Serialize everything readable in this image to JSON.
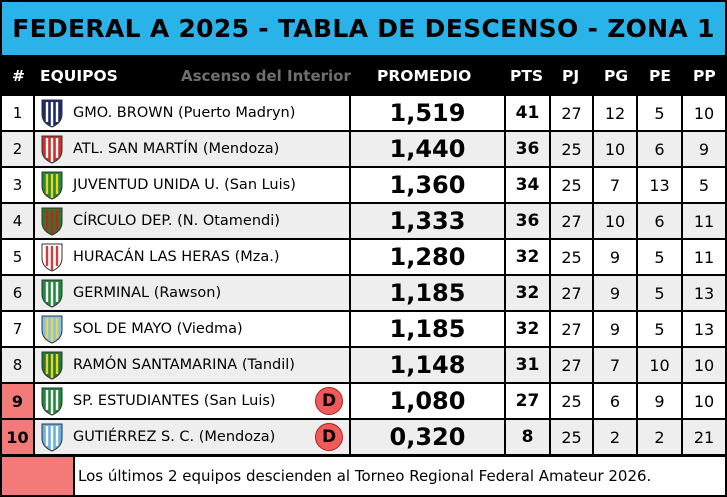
{
  "title": "FEDERAL A 2025 - TABLA DE DESCENSO - ZONA 1",
  "header": {
    "num": "#",
    "teams": "EQUIPOS",
    "subtitle": "Ascenso del Interior",
    "prom": "PROMEDIO",
    "pts": "PTS",
    "pj": "PJ",
    "pg": "PG",
    "pe": "PE",
    "pp": "PP"
  },
  "colors": {
    "title_bg": "#29b3e9",
    "relegation": "#f47a7a",
    "badge": "#f15a5a"
  },
  "rows": [
    {
      "pos": "1",
      "team": "GMO. BROWN (Puerto Madryn)",
      "prom": "1,519",
      "pts": "41",
      "pj": "27",
      "pg": "12",
      "pe": "5",
      "pp": "10",
      "badge": "",
      "shield": [
        "#1d2a6b",
        "#ffffff"
      ]
    },
    {
      "pos": "2",
      "team": "ATL. SAN MARTÍN (Mendoza)",
      "prom": "1,440",
      "pts": "36",
      "pj": "25",
      "pg": "10",
      "pe": "6",
      "pp": "9",
      "badge": "",
      "shield": [
        "#d42a2a",
        "#ffffff"
      ]
    },
    {
      "pos": "3",
      "team": "JUVENTUD UNIDA U. (San Luis)",
      "prom": "1,360",
      "pts": "34",
      "pj": "25",
      "pg": "7",
      "pe": "13",
      "pp": "5",
      "badge": "",
      "shield": [
        "#1e8a3a",
        "#f2d21b"
      ]
    },
    {
      "pos": "4",
      "team": "CÍRCULO DEP. (N. Otamendi)",
      "prom": "1,333",
      "pts": "36",
      "pj": "27",
      "pg": "10",
      "pe": "6",
      "pp": "11",
      "badge": "",
      "shield": [
        "#2a7a2a",
        "#c82020"
      ]
    },
    {
      "pos": "5",
      "team": "HURACÁN LAS HERAS (Mza.)",
      "prom": "1,280",
      "pts": "32",
      "pj": "25",
      "pg": "9",
      "pe": "5",
      "pp": "11",
      "badge": "",
      "shield": [
        "#ffffff",
        "#d63a3a"
      ]
    },
    {
      "pos": "6",
      "team": "GERMINAL (Rawson)",
      "prom": "1,185",
      "pts": "32",
      "pj": "27",
      "pg": "9",
      "pe": "5",
      "pp": "13",
      "badge": "",
      "shield": [
        "#1e8a3a",
        "#ffffff"
      ]
    },
    {
      "pos": "7",
      "team": "SOL DE MAYO (Viedma)",
      "prom": "1,185",
      "pts": "32",
      "pj": "27",
      "pg": "9",
      "pe": "5",
      "pp": "13",
      "badge": "",
      "shield": [
        "#7fc4ee",
        "#f5d33a"
      ]
    },
    {
      "pos": "8",
      "team": "RAMÓN SANTAMARINA (Tandil)",
      "prom": "1,148",
      "pts": "31",
      "pj": "27",
      "pg": "7",
      "pe": "10",
      "pp": "10",
      "badge": "",
      "shield": [
        "#1e7a3a",
        "#f2d21b"
      ]
    },
    {
      "pos": "9",
      "team": "SP. ESTUDIANTES (San Luis)",
      "prom": "1,080",
      "pts": "27",
      "pj": "25",
      "pg": "6",
      "pe": "9",
      "pp": "10",
      "badge": "D",
      "shield": [
        "#1e8a3a",
        "#ffffff"
      ]
    },
    {
      "pos": "10",
      "team": "GUTIÉRREZ S. C. (Mendoza)",
      "prom": "0,320",
      "pts": "8",
      "pj": "25",
      "pg": "2",
      "pe": "2",
      "pp": "21",
      "badge": "D",
      "shield": [
        "#6ab0e0",
        "#ffffff"
      ]
    }
  ],
  "legend": "Los últimos 2 equipos descienden al Torneo Regional Federal Amateur 2026."
}
